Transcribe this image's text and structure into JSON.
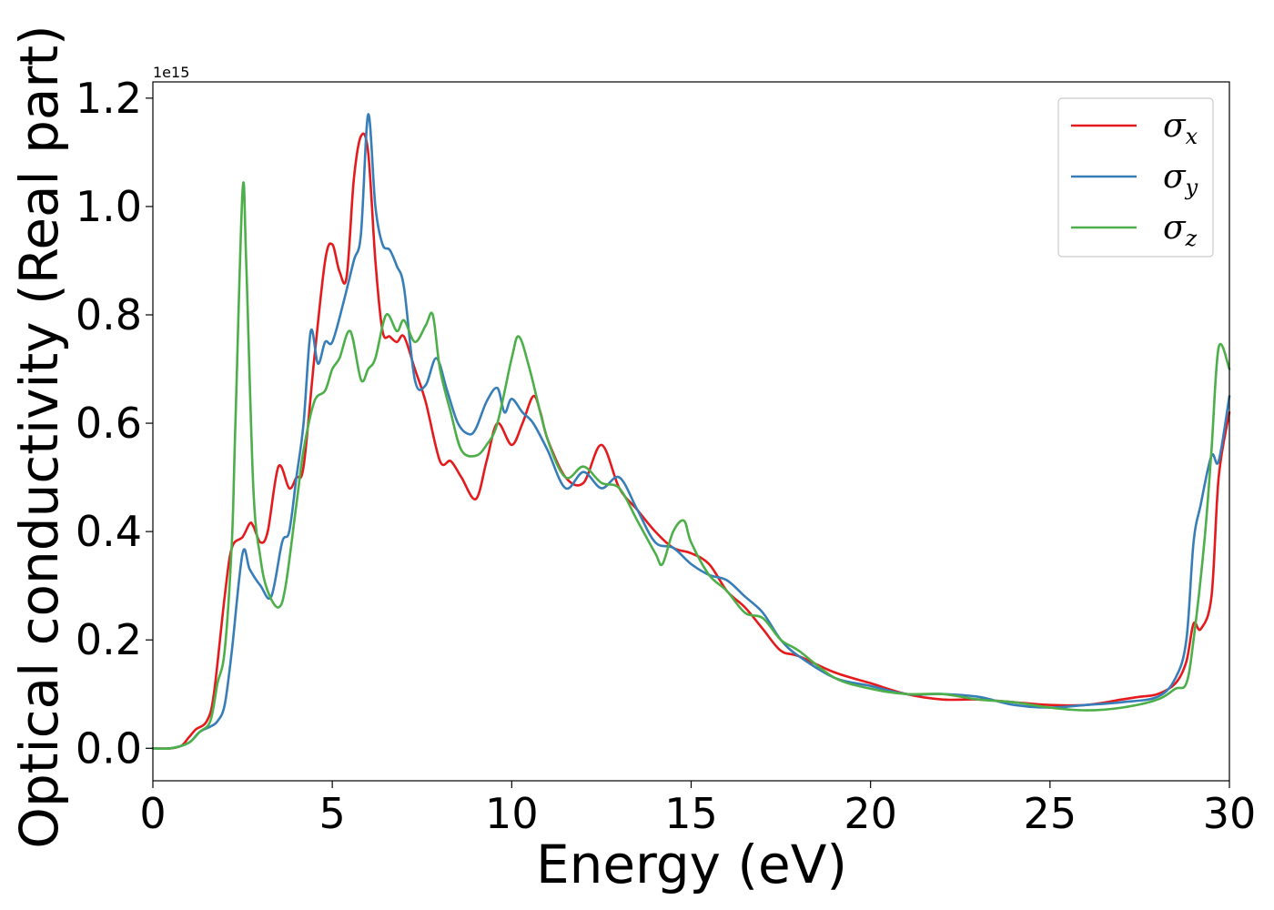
{
  "chart_data": {
    "type": "line",
    "title": "",
    "xlabel": "Energy (eV)",
    "ylabel": "Optical conductivity (Real part)",
    "y_offset_text": "1e15",
    "xlim": [
      0,
      30
    ],
    "ylim": [
      -0.06,
      1.23
    ],
    "y_scale": 1000000000000000.0,
    "xticks": [
      0,
      5,
      10,
      15,
      20,
      25,
      30
    ],
    "xtick_labels": [
      "0",
      "5",
      "10",
      "15",
      "20",
      "25",
      "30"
    ],
    "yticks": [
      0.0,
      0.2,
      0.4,
      0.6,
      0.8,
      1.0,
      1.2
    ],
    "ytick_labels": [
      "0.0",
      "0.2",
      "0.4",
      "0.6",
      "0.8",
      "1.0",
      "1.2"
    ],
    "grid": false,
    "legend_position": "top-right",
    "series": [
      {
        "name": "σx",
        "symbol": "σ",
        "subscript": "x",
        "color": "#e41a1c",
        "x": [
          0,
          0.5,
          0.8,
          1.0,
          1.2,
          1.5,
          1.7,
          2.0,
          2.2,
          2.5,
          2.7,
          2.8,
          3.0,
          3.2,
          3.5,
          3.8,
          4.0,
          4.2,
          4.5,
          4.8,
          5.0,
          5.2,
          5.4,
          5.6,
          5.8,
          6.0,
          6.2,
          6.4,
          6.6,
          6.8,
          7.0,
          7.3,
          7.6,
          8.0,
          8.3,
          8.6,
          9.0,
          9.3,
          9.6,
          10.0,
          10.3,
          10.6,
          10.8,
          11.0,
          11.5,
          12.0,
          12.5,
          13.0,
          13.5,
          14.0,
          14.5,
          15.0,
          15.5,
          16.0,
          16.5,
          17.0,
          17.5,
          18.0,
          19.0,
          20.0,
          21.0,
          22.0,
          23.0,
          24.0,
          25.0,
          26.0,
          27.0,
          27.5,
          28.0,
          28.5,
          28.8,
          29.0,
          29.2,
          29.5,
          29.7,
          30.0
        ],
        "values": [
          0.0,
          0.0,
          0.005,
          0.02,
          0.035,
          0.05,
          0.1,
          0.28,
          0.37,
          0.39,
          0.415,
          0.41,
          0.38,
          0.4,
          0.52,
          0.48,
          0.5,
          0.52,
          0.72,
          0.9,
          0.93,
          0.88,
          0.87,
          1.05,
          1.13,
          1.1,
          0.9,
          0.77,
          0.76,
          0.75,
          0.76,
          0.7,
          0.64,
          0.53,
          0.53,
          0.5,
          0.46,
          0.53,
          0.6,
          0.56,
          0.6,
          0.65,
          0.62,
          0.57,
          0.5,
          0.49,
          0.56,
          0.48,
          0.44,
          0.4,
          0.37,
          0.36,
          0.34,
          0.29,
          0.26,
          0.22,
          0.18,
          0.17,
          0.14,
          0.12,
          0.1,
          0.09,
          0.09,
          0.085,
          0.08,
          0.08,
          0.09,
          0.095,
          0.1,
          0.12,
          0.16,
          0.23,
          0.22,
          0.28,
          0.5,
          0.62
        ]
      },
      {
        "name": "σy",
        "symbol": "σ",
        "subscript": "y",
        "color": "#377eb8",
        "x": [
          0,
          0.5,
          1.0,
          1.3,
          1.6,
          1.8,
          2.0,
          2.2,
          2.5,
          2.7,
          3.0,
          3.3,
          3.6,
          3.8,
          4.0,
          4.2,
          4.4,
          4.6,
          4.8,
          5.0,
          5.3,
          5.6,
          5.8,
          6.0,
          6.2,
          6.4,
          6.6,
          6.8,
          7.0,
          7.3,
          7.6,
          7.9,
          8.2,
          8.5,
          8.8,
          9.0,
          9.3,
          9.6,
          9.8,
          10.0,
          10.3,
          10.6,
          11.0,
          11.5,
          12.0,
          12.5,
          13.0,
          13.5,
          14.0,
          14.5,
          15.0,
          15.5,
          16.0,
          16.5,
          17.0,
          17.5,
          18.0,
          19.0,
          20.0,
          21.0,
          22.0,
          23.0,
          24.0,
          25.0,
          26.0,
          27.0,
          28.0,
          28.5,
          28.8,
          29.0,
          29.2,
          29.5,
          29.7,
          30.0
        ],
        "values": [
          0.0,
          0.0,
          0.01,
          0.03,
          0.04,
          0.05,
          0.08,
          0.18,
          0.36,
          0.33,
          0.3,
          0.28,
          0.38,
          0.4,
          0.5,
          0.6,
          0.77,
          0.71,
          0.75,
          0.75,
          0.82,
          0.9,
          0.95,
          1.17,
          1.0,
          0.93,
          0.92,
          0.89,
          0.85,
          0.68,
          0.67,
          0.72,
          0.66,
          0.6,
          0.58,
          0.59,
          0.64,
          0.665,
          0.62,
          0.645,
          0.62,
          0.6,
          0.55,
          0.48,
          0.51,
          0.48,
          0.5,
          0.44,
          0.38,
          0.37,
          0.34,
          0.32,
          0.31,
          0.28,
          0.25,
          0.2,
          0.17,
          0.13,
          0.115,
          0.1,
          0.1,
          0.095,
          0.08,
          0.075,
          0.08,
          0.085,
          0.095,
          0.13,
          0.2,
          0.38,
          0.45,
          0.54,
          0.53,
          0.65
        ]
      },
      {
        "name": "σz",
        "symbol": "σ",
        "subscript": "z",
        "color": "#4daf4a",
        "x": [
          0,
          0.5,
          1.0,
          1.3,
          1.6,
          1.8,
          2.0,
          2.2,
          2.3,
          2.5,
          2.6,
          2.8,
          3.0,
          3.2,
          3.5,
          3.7,
          4.0,
          4.2,
          4.5,
          4.8,
          5.0,
          5.2,
          5.5,
          5.8,
          6.0,
          6.2,
          6.5,
          6.8,
          7.0,
          7.3,
          7.6,
          7.8,
          8.0,
          8.3,
          8.6,
          9.0,
          9.3,
          9.6,
          10.0,
          10.2,
          10.5,
          11.0,
          11.5,
          12.0,
          12.5,
          13.0,
          13.5,
          14.0,
          14.2,
          14.5,
          14.8,
          15.0,
          15.5,
          16.0,
          16.5,
          17.0,
          17.5,
          18.0,
          19.0,
          20.0,
          21.0,
          22.0,
          23.0,
          24.0,
          25.0,
          26.0,
          27.0,
          28.0,
          28.5,
          28.8,
          29.0,
          29.3,
          29.5,
          29.7,
          30.0
        ],
        "values": [
          0.0,
          0.0,
          0.01,
          0.03,
          0.05,
          0.12,
          0.18,
          0.38,
          0.6,
          1.03,
          0.9,
          0.48,
          0.35,
          0.29,
          0.26,
          0.3,
          0.45,
          0.55,
          0.64,
          0.66,
          0.7,
          0.72,
          0.77,
          0.68,
          0.7,
          0.72,
          0.8,
          0.77,
          0.79,
          0.75,
          0.78,
          0.8,
          0.7,
          0.62,
          0.55,
          0.54,
          0.56,
          0.6,
          0.72,
          0.76,
          0.7,
          0.57,
          0.5,
          0.52,
          0.49,
          0.48,
          0.42,
          0.36,
          0.34,
          0.4,
          0.42,
          0.38,
          0.32,
          0.29,
          0.25,
          0.24,
          0.2,
          0.18,
          0.13,
          0.11,
          0.1,
          0.1,
          0.09,
          0.085,
          0.075,
          0.07,
          0.075,
          0.09,
          0.11,
          0.12,
          0.2,
          0.38,
          0.55,
          0.74,
          0.7
        ]
      }
    ]
  }
}
